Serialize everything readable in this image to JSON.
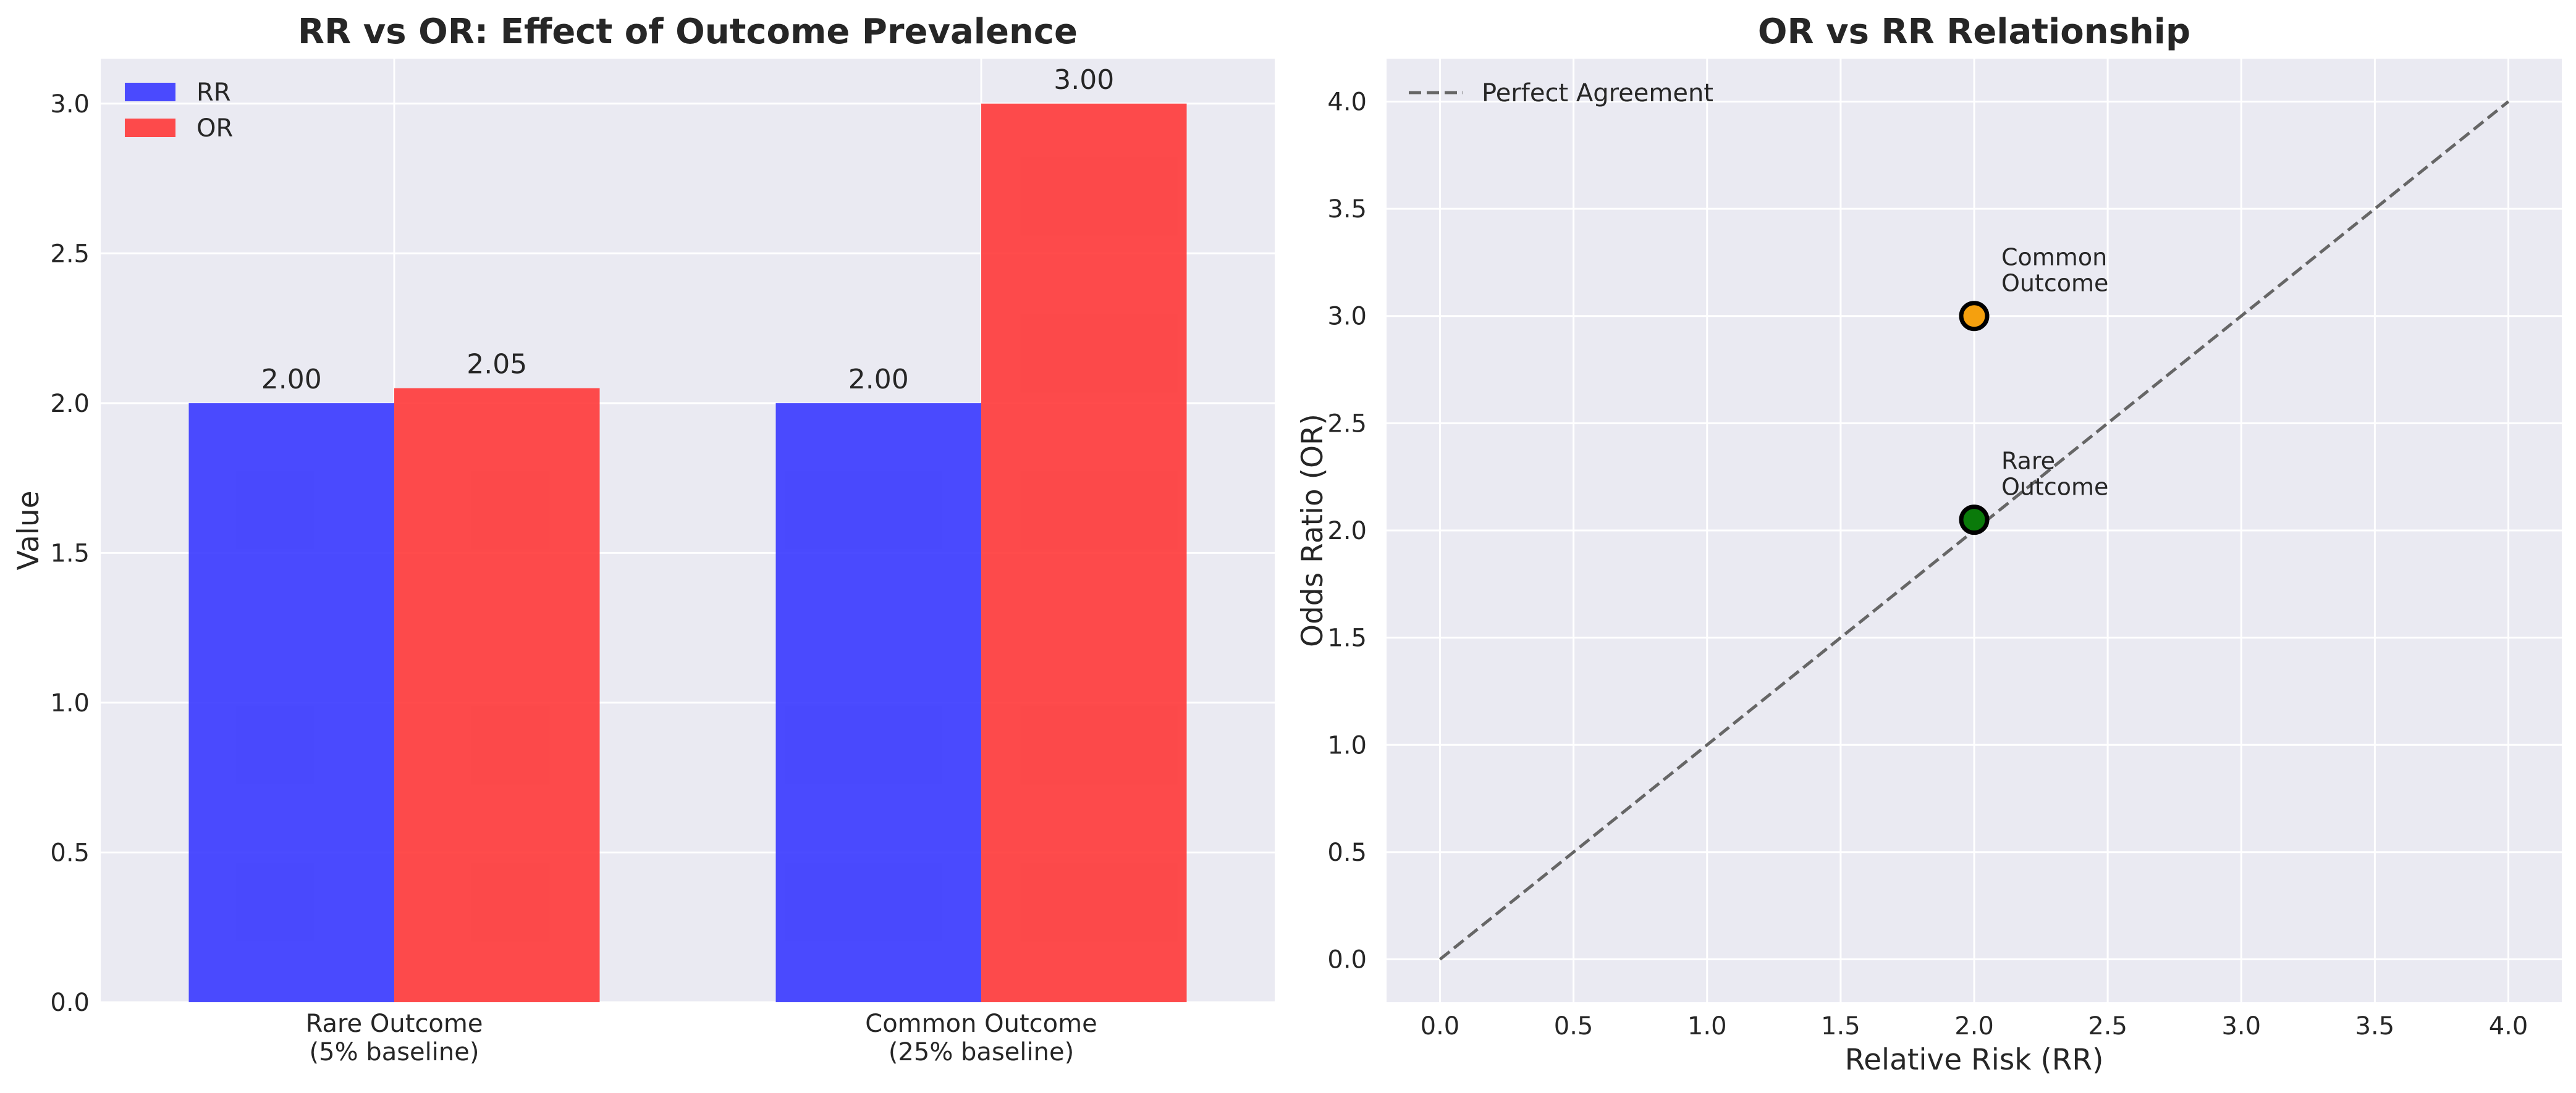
{
  "chart_data": [
    {
      "type": "bar",
      "title": "RR vs OR: Effect of Outcome Prevalence",
      "xlabel": "",
      "ylabel": "Value",
      "categories": [
        [
          "Rare Outcome",
          "(5% baseline)"
        ],
        [
          "Common Outcome",
          "(25% baseline)"
        ]
      ],
      "series": [
        {
          "name": "RR",
          "values": [
            2.0,
            2.0
          ],
          "labels": [
            "2.00",
            "2.00"
          ],
          "color": "#3333ff"
        },
        {
          "name": "OR",
          "values": [
            2.05,
            3.0
          ],
          "labels": [
            "2.05",
            "3.00"
          ],
          "color": "#ff3333"
        }
      ],
      "ylim": [
        0,
        3.15
      ],
      "yticks": [
        "0.0",
        "0.5",
        "1.0",
        "1.5",
        "2.0",
        "2.5",
        "3.0"
      ],
      "grid": true,
      "legend": "top-left"
    },
    {
      "type": "scatter",
      "title": "OR vs RR Relationship",
      "xlabel": "Relative Risk (RR)",
      "ylabel": "Odds Ratio (OR)",
      "xlim": [
        -0.2,
        4.2
      ],
      "ylim": [
        -0.2,
        4.2
      ],
      "xticks": [
        "0.0",
        "0.5",
        "1.0",
        "1.5",
        "2.0",
        "2.5",
        "3.0",
        "3.5",
        "4.0"
      ],
      "yticks": [
        "0.0",
        "0.5",
        "1.0",
        "1.5",
        "2.0",
        "2.5",
        "3.0",
        "3.5",
        "4.0"
      ],
      "reference_line": {
        "name": "Perfect Agreement",
        "x": [
          0,
          4
        ],
        "y": [
          0,
          4
        ],
        "style": "dashed",
        "color": "#666666"
      },
      "points": [
        {
          "x": 2.0,
          "y": 3.0,
          "label": [
            "Common",
            "Outcome"
          ],
          "color": "#f5a00e"
        },
        {
          "x": 2.0,
          "y": 2.05,
          "label": [
            "Rare",
            "Outcome"
          ],
          "color": "#0a7a0a"
        }
      ],
      "grid": true,
      "legend": "top-left"
    }
  ]
}
